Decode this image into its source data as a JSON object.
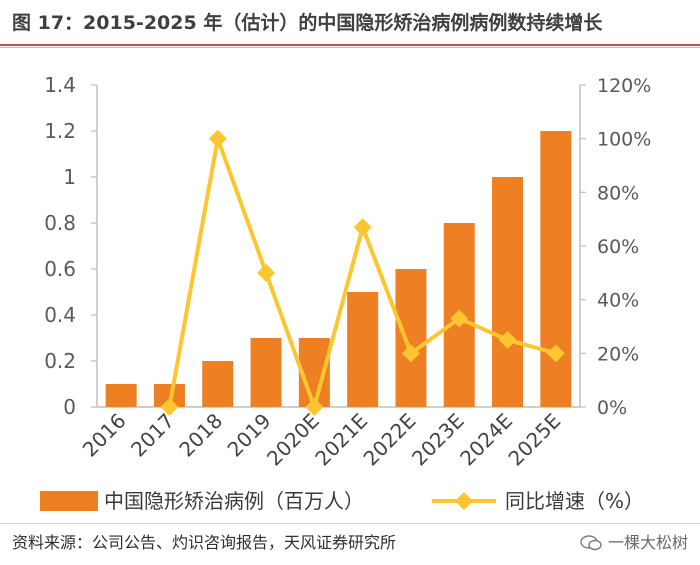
{
  "title": "图 17：2015-2025 年（估计）的中国隐形矫治病例病例数持续增长",
  "source": "资料来源：公司公告、灼识咨询报告，天风证券研究所",
  "watermark": "一棵大松树",
  "colors": {
    "bar": "#ee7f22",
    "line": "#fcc631",
    "title_rule": "#c0504d",
    "axis": "#bfbfbf"
  },
  "chart_data": {
    "type": "bar",
    "title": "",
    "categories": [
      "2016",
      "2017",
      "2018",
      "2019",
      "2020E",
      "2021E",
      "2022E",
      "2023E",
      "2024E",
      "2025E"
    ],
    "series": [
      {
        "name": "中国隐形矫治病例（百万人）",
        "type": "bar",
        "axis": "left",
        "values": [
          0.1,
          0.1,
          0.2,
          0.3,
          0.3,
          0.5,
          0.6,
          0.8,
          1.0,
          1.2
        ]
      },
      {
        "name": "同比增速（%）",
        "type": "line",
        "axis": "right",
        "values": [
          null,
          0,
          100,
          50,
          0,
          67,
          20,
          33,
          25,
          20
        ]
      }
    ],
    "ylim_left": [
      0,
      1.4
    ],
    "yticks_left": [
      "0",
      "0.2",
      "0.4",
      "0.6",
      "0.8",
      "1",
      "1.2",
      "1.4"
    ],
    "ylim_right": [
      0,
      120
    ],
    "yticks_right": [
      "0%",
      "20%",
      "40%",
      "60%",
      "80%",
      "100%",
      "120%"
    ],
    "xlabel": "",
    "ylabel": "",
    "legend_position": "bottom"
  }
}
